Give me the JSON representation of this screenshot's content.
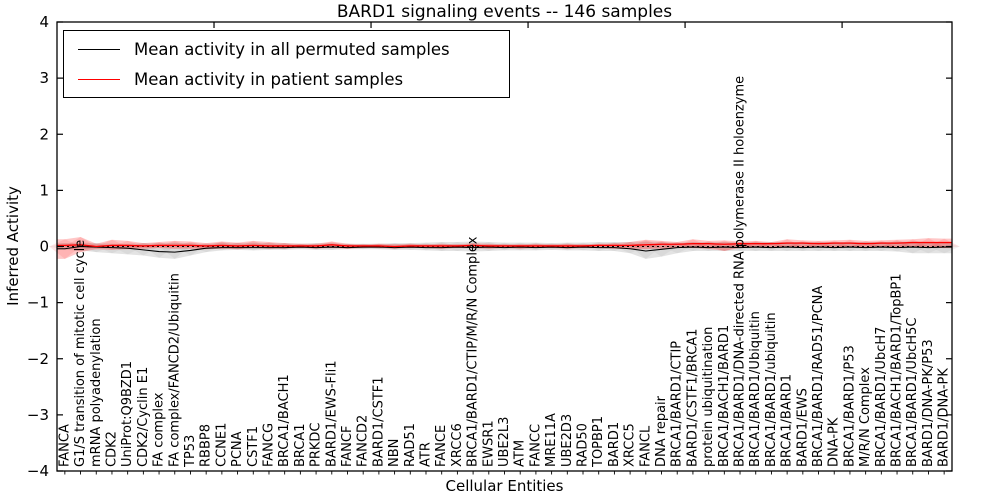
{
  "title": "BARD1 signaling events -- 146 samples",
  "colors": {
    "permuted_line": "#000000",
    "patient_line": "#ff0000",
    "permuted_band": "#999999",
    "patient_band": "#ff0000",
    "axis": "#000000"
  },
  "chart_data": {
    "type": "line",
    "title": "BARD1 signaling events -- 146 samples",
    "xlabel": "Cellular Entities",
    "ylabel": "Inferred Activity",
    "ylim": [
      -4,
      4
    ],
    "y_ticks": [
      -4,
      -3,
      -2,
      -1,
      0,
      1,
      2,
      3,
      4
    ],
    "grid": false,
    "legend_position": "upper left",
    "zero_line": 0,
    "categories": [
      "FANCA",
      "G1/S transition of mitotic cell cycle",
      "mRNA polyadenylation",
      "CDK2",
      "UniProt:Q9BZD1",
      "CDK2/Cyclin E1",
      "FA complex",
      "FA complex/FANCD2/Ubiquitin",
      "TP53",
      "RBBP8",
      "CCNE1",
      "PCNA",
      "CSTF1",
      "FANCG",
      "BRCA1/BACH1",
      "BRCA1",
      "PRKDC",
      "BARD1/EWS-Fli1",
      "FANCF",
      "FANCD2",
      "BARD1/CSTF1",
      "NBN",
      "RAD51",
      "ATR",
      "FANCE",
      "XRCC6",
      "BRCA1/BARD1/CTIP/M/R/N Complex",
      "EWSR1",
      "UBE2L3",
      "ATM",
      "FANCC",
      "MRE11A",
      "UBE2D3",
      "RAD50",
      "TOPBP1",
      "BARD1",
      "XRCC5",
      "FANCL",
      "DNA repair",
      "BRCA1/BARD1/CTIP",
      "BARD1/CSTF1/BRCA1",
      "protein ubiquitination",
      "BRCA1/BACH1/BARD1",
      "BRCA1/BARD1/DNA-directed RNA polymerase II holoenzyme",
      "BRCA1/BARD1/Ubiquitin",
      "BRCA1/BARD1/ubiquitin",
      "BRCA1/BARD1",
      "BARD1/EWS",
      "BRCA1/BARD1/RAD51/PCNA",
      "DNA-PK",
      "BRCA1/BARD1/P53",
      "M/R/N Complex",
      "BRCA1/BARD1/UbcH7",
      "BRCA1/BACH1/BARD1/TopBP1",
      "BRCA1/BARD1/UbcH5C",
      "BARD1/DNA-PK/P53",
      "BARD1/DNA-PK"
    ],
    "series": [
      {
        "name": "Mean activity in all permuted samples",
        "color": "#000000",
        "values": [
          -0.04,
          0.0,
          -0.01,
          -0.02,
          -0.03,
          -0.06,
          -0.09,
          -0.1,
          -0.07,
          -0.03,
          -0.02,
          -0.02,
          -0.02,
          -0.02,
          -0.02,
          -0.01,
          -0.02,
          -0.01,
          -0.02,
          -0.01,
          -0.01,
          -0.02,
          -0.01,
          -0.02,
          -0.02,
          -0.01,
          -0.02,
          -0.01,
          -0.02,
          -0.01,
          -0.02,
          -0.01,
          -0.02,
          -0.01,
          -0.02,
          -0.02,
          -0.04,
          -0.08,
          -0.05,
          -0.02,
          -0.01,
          -0.02,
          -0.01,
          -0.02,
          -0.01,
          -0.02,
          -0.01,
          -0.02,
          -0.01,
          -0.02,
          -0.01,
          -0.02,
          -0.01,
          -0.02,
          -0.01,
          -0.02,
          -0.01
        ]
      },
      {
        "name": "Mean activity in patient samples",
        "color": "#ff0000",
        "values": [
          0.02,
          0.03,
          0.0,
          0.02,
          0.02,
          0.01,
          0.02,
          0.02,
          0.02,
          0.01,
          0.02,
          0.01,
          0.02,
          0.01,
          0.01,
          0.01,
          0.01,
          0.03,
          0.01,
          0.01,
          0.01,
          0.0,
          0.01,
          0.01,
          0.01,
          0.01,
          0.02,
          0.01,
          0.01,
          0.01,
          0.01,
          0.01,
          0.01,
          0.01,
          0.02,
          0.02,
          0.02,
          0.03,
          0.04,
          0.04,
          0.05,
          0.05,
          0.04,
          0.05,
          0.05,
          0.05,
          0.06,
          0.06,
          0.05,
          0.06,
          0.06,
          0.05,
          0.06,
          0.06,
          0.07,
          0.07,
          0.07
        ]
      }
    ],
    "bands": [
      {
        "name": "permuted samples range",
        "color": "#999999",
        "opacity": 0.28,
        "upper": [
          0.06,
          0.07,
          0.06,
          0.05,
          0.05,
          0.06,
          0.06,
          0.07,
          0.06,
          0.05,
          0.07,
          0.06,
          0.07,
          0.06,
          0.06,
          0.05,
          0.06,
          0.06,
          0.05,
          0.05,
          0.05,
          0.06,
          0.06,
          0.07,
          0.08,
          0.08,
          0.09,
          0.08,
          0.07,
          0.07,
          0.07,
          0.06,
          0.07,
          0.07,
          0.08,
          0.08,
          0.08,
          0.09,
          0.08,
          0.07,
          0.08,
          0.08,
          0.08,
          0.08,
          0.08,
          0.08,
          0.08,
          0.08,
          0.08,
          0.08,
          0.08,
          0.08,
          0.08,
          0.09,
          0.09,
          0.08,
          0.08
        ],
        "lower": [
          -0.06,
          -0.07,
          -0.1,
          -0.12,
          -0.14,
          -0.16,
          -0.2,
          -0.22,
          -0.16,
          -0.1,
          -0.07,
          -0.06,
          -0.07,
          -0.06,
          -0.06,
          -0.05,
          -0.06,
          -0.06,
          -0.05,
          -0.05,
          -0.05,
          -0.06,
          -0.06,
          -0.07,
          -0.08,
          -0.08,
          -0.09,
          -0.08,
          -0.07,
          -0.07,
          -0.07,
          -0.06,
          -0.07,
          -0.07,
          -0.08,
          -0.08,
          -0.12,
          -0.22,
          -0.18,
          -0.12,
          -0.08,
          -0.08,
          -0.08,
          -0.08,
          -0.08,
          -0.08,
          -0.08,
          -0.08,
          -0.08,
          -0.08,
          -0.08,
          -0.08,
          -0.08,
          -0.09,
          -0.12,
          -0.12,
          -0.12
        ]
      },
      {
        "name": "patient samples range",
        "color": "#ff0000",
        "opacity": 0.22,
        "upper": [
          0.13,
          0.17,
          0.05,
          0.12,
          0.1,
          0.06,
          0.08,
          0.1,
          0.09,
          0.06,
          0.09,
          0.07,
          0.1,
          0.08,
          0.06,
          0.05,
          0.05,
          0.09,
          0.05,
          0.04,
          0.05,
          0.04,
          0.05,
          0.04,
          0.05,
          0.04,
          0.06,
          0.05,
          0.04,
          0.04,
          0.05,
          0.04,
          0.05,
          0.04,
          0.05,
          0.06,
          0.08,
          0.12,
          0.1,
          0.08,
          0.13,
          0.1,
          0.11,
          0.09,
          0.1,
          0.08,
          0.13,
          0.11,
          0.1,
          0.11,
          0.12,
          0.1,
          0.11,
          0.12,
          0.13,
          0.15,
          0.14
        ],
        "lower": [
          -0.22,
          -0.1,
          -0.05,
          -0.06,
          -0.05,
          -0.04,
          -0.03,
          -0.04,
          -0.04,
          -0.05,
          -0.04,
          -0.05,
          -0.03,
          -0.04,
          -0.04,
          -0.03,
          -0.04,
          -0.03,
          -0.04,
          -0.03,
          -0.03,
          -0.04,
          -0.03,
          -0.03,
          -0.04,
          -0.03,
          -0.03,
          -0.04,
          -0.03,
          -0.04,
          -0.03,
          -0.03,
          -0.04,
          -0.03,
          -0.03,
          -0.04,
          -0.05,
          -0.05,
          -0.04,
          -0.03,
          -0.03,
          -0.04,
          -0.08,
          -0.03,
          -0.02,
          -0.02,
          -0.02,
          -0.02,
          -0.01,
          -0.02,
          -0.01,
          -0.02,
          -0.01,
          -0.02,
          -0.01,
          -0.02,
          -0.03
        ]
      }
    ]
  }
}
